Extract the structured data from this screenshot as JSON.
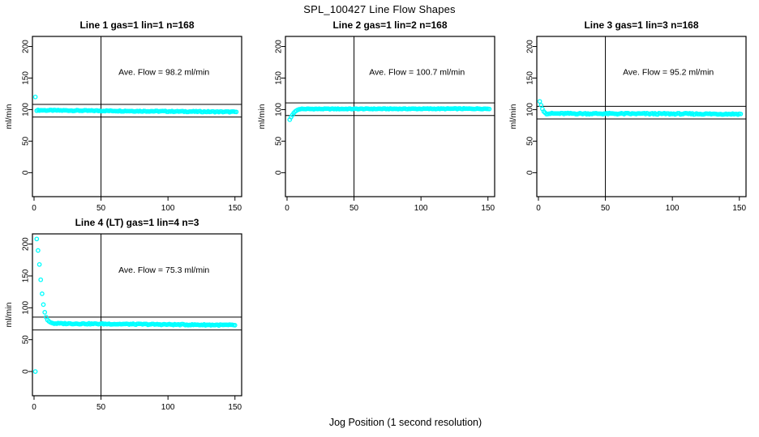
{
  "figure": {
    "main_title": "SPL_100427  Line Flow Shapes",
    "x_axis_label": "Jog Position (1 second resolution)",
    "background_color": "#ffffff",
    "point_color": "#00ffff",
    "axis_color": "#000000",
    "text_color": "#000000"
  },
  "chart_data": [
    {
      "type": "scatter",
      "title": "Line 1 gas=1 lin=1 n=168",
      "annotation": "Ave. Flow =  98.2  ml/min",
      "ave_flow_ml_min": 98.2,
      "ylabel": "ml/min",
      "xticks": [
        0,
        50,
        100,
        150
      ],
      "yticks": [
        0,
        50,
        100,
        150,
        200
      ],
      "xlim": [
        -1.2,
        155
      ],
      "ylim": [
        -38,
        216
      ],
      "grid": false,
      "legend": "none",
      "vline_x": 50,
      "hlines_y": [
        108.2,
        88.2
      ],
      "annotation_xy": [
        97,
        155
      ],
      "transient_points": [
        [
          1,
          120
        ]
      ],
      "plateau_band": {
        "x_start": 2,
        "x_end": 151,
        "y_start": 99.0,
        "y_end": 96.3,
        "jitter": 0.7
      },
      "outlier_points": []
    },
    {
      "type": "scatter",
      "title": "Line 2 gas=1 lin=2 n=168",
      "annotation": "Ave. Flow =  100.7  ml/min",
      "ave_flow_ml_min": 100.7,
      "ylabel": "ml/min",
      "xticks": [
        0,
        50,
        100,
        150
      ],
      "yticks": [
        0,
        50,
        100,
        150,
        200
      ],
      "xlim": [
        -1.2,
        155
      ],
      "ylim": [
        -38,
        216
      ],
      "grid": false,
      "legend": "none",
      "vline_x": 50,
      "hlines_y": [
        110.7,
        90.7
      ],
      "annotation_xy": [
        97,
        155
      ],
      "transient_points": [
        [
          2,
          84
        ],
        [
          3,
          88
        ],
        [
          4,
          91.5
        ],
        [
          5,
          94.5
        ],
        [
          6,
          96.8
        ],
        [
          7,
          98.4
        ],
        [
          8,
          99.6
        ],
        [
          9,
          100.4
        ]
      ],
      "plateau_band": {
        "x_start": 10,
        "x_end": 151,
        "y_start": 101.0,
        "y_end": 101.4,
        "jitter": 0.55
      },
      "outlier_points": []
    },
    {
      "type": "scatter",
      "title": "Line 3 gas=1 lin=3 n=168",
      "annotation": "Ave. Flow =  95.2  ml/min",
      "ave_flow_ml_min": 95.2,
      "ylabel": "ml/min",
      "xticks": [
        0,
        50,
        100,
        150
      ],
      "yticks": [
        0,
        50,
        100,
        150,
        200
      ],
      "xlim": [
        -1.2,
        155
      ],
      "ylim": [
        -38,
        216
      ],
      "grid": false,
      "legend": "none",
      "vline_x": 50,
      "hlines_y": [
        105.2,
        85.2
      ],
      "annotation_xy": [
        97,
        155
      ],
      "transient_points": [
        [
          1,
          113
        ],
        [
          2,
          107
        ],
        [
          3,
          101
        ],
        [
          4,
          97
        ],
        [
          5,
          95
        ]
      ],
      "plateau_band": {
        "x_start": 6,
        "x_end": 151,
        "y_start": 93.8,
        "y_end": 93.0,
        "jitter": 1.0
      },
      "outlier_points": []
    },
    {
      "type": "scatter",
      "title": "Line 4 (LT) gas=1 lin=4 n=3",
      "annotation": "Ave. Flow =  75.3  ml/min",
      "ave_flow_ml_min": 75.3,
      "ylabel": "ml/min",
      "xticks": [
        0,
        50,
        100,
        150
      ],
      "yticks": [
        0,
        50,
        100,
        150,
        200
      ],
      "xlim": [
        -1.2,
        155
      ],
      "ylim": [
        -38,
        216
      ],
      "grid": false,
      "legend": "none",
      "vline_x": 50,
      "hlines_y": [
        85.3,
        65.3
      ],
      "annotation_xy": [
        97,
        155
      ],
      "transient_points": [
        [
          2,
          208
        ],
        [
          3,
          190
        ],
        [
          4,
          168
        ],
        [
          5,
          144
        ],
        [
          6,
          122
        ],
        [
          7,
          105
        ],
        [
          8,
          93
        ],
        [
          9,
          85.5
        ],
        [
          10,
          81
        ],
        [
          11,
          78.8
        ],
        [
          12,
          77.4
        ],
        [
          13,
          76.4
        ],
        [
          14,
          75.8
        ]
      ],
      "plateau_band": {
        "x_start": 15,
        "x_end": 150,
        "y_start": 75.4,
        "y_end": 72.8,
        "jitter": 0.8
      },
      "outlier_points": [
        [
          1,
          0
        ]
      ]
    }
  ]
}
